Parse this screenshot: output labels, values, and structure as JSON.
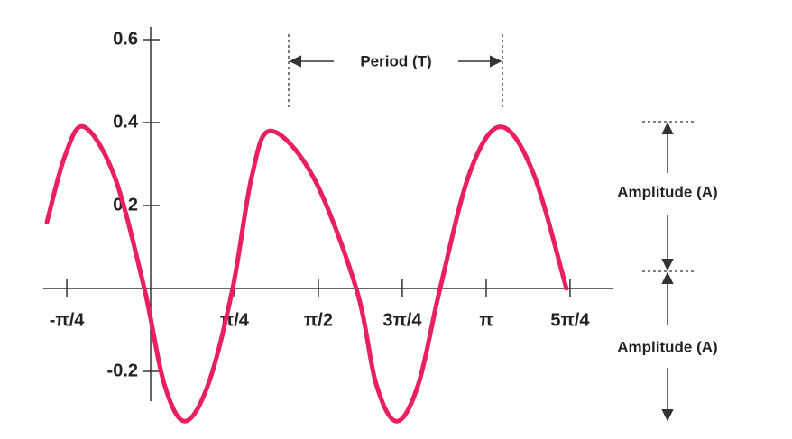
{
  "chart_data": {
    "type": "line",
    "x": [
      -0.971,
      -0.802,
      -0.625,
      -0.338,
      -0.059,
      0.127,
      0.321,
      0.541,
      0.768,
      0.947,
      1.123,
      1.52,
      1.925,
      2.111,
      2.305,
      2.508,
      2.71,
      2.989,
      3.276,
      3.58,
      3.893
    ],
    "series": [
      {
        "color": "#e91e63",
        "values": [
          0.16,
          0.32,
          0.39,
          0.27,
          0,
          -0.23,
          -0.32,
          -0.23,
          0,
          0.27,
          0.38,
          0.27,
          0,
          -0.23,
          -0.32,
          -0.23,
          0,
          0.28,
          0.39,
          0.28,
          0
        ]
      }
    ],
    "xlim": [
      -1.005,
      4.333
    ],
    "ylim": [
      -0.35,
      0.65
    ],
    "xticks": [
      {
        "value": -0.785,
        "label": "-π/4"
      },
      {
        "value": 0.785,
        "label": "π/4"
      },
      {
        "value": 1.571,
        "label": "π/2"
      },
      {
        "value": 2.356,
        "label": "3π/4"
      },
      {
        "value": 3.142,
        "label": "π"
      },
      {
        "value": 3.927,
        "label": "5π/4"
      }
    ],
    "yticks": [
      -0.2,
      0.2,
      0.4,
      0.6
    ],
    "annotations": {
      "period": "Period (T)",
      "amplitude_upper": "Amplitude (A)",
      "amplitude_lower": "Amplitude (A)"
    }
  }
}
